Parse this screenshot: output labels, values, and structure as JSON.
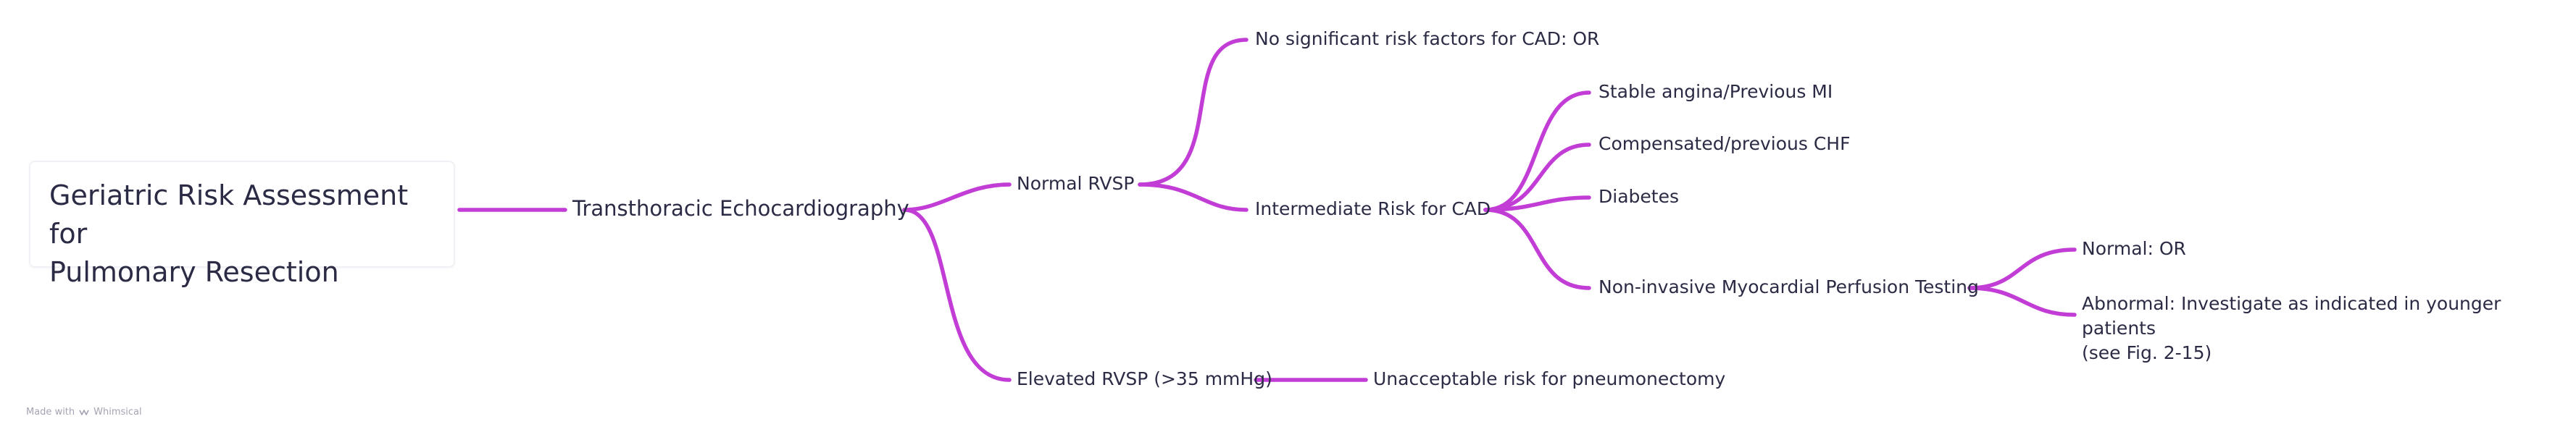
{
  "accent_color": "#c23dd5",
  "root": {
    "title_line1": "Geriatric Risk Assessment for",
    "title_line2": "Pulmonary Resection"
  },
  "nodes": {
    "tte": "Transthoracic Echocardiography",
    "normal_rvsp": "Normal RVSP",
    "elevated_rvsp": "Elevated RVSP (>35 mmHg)",
    "no_risk": "No significant risk factors for CAD: OR",
    "intermediate": "Intermediate Risk for CAD",
    "unacceptable": "Unacceptable risk for pneumonectomy",
    "stable_angina": "Stable angina/Previous MI",
    "chf": "Compensated/previous CHF",
    "diabetes": "Diabetes",
    "perfusion": "Non-invasive Myocardial Perfusion Testing",
    "normal_or": "Normal: OR",
    "abnormal_line1": "Abnormal: Investigate as indicated in younger patients",
    "abnormal_line2": "(see Fig. 2-15)"
  },
  "watermark": {
    "made_with": "Made with",
    "brand": "Whimsical",
    "icon": "whimsical-logo-icon"
  }
}
